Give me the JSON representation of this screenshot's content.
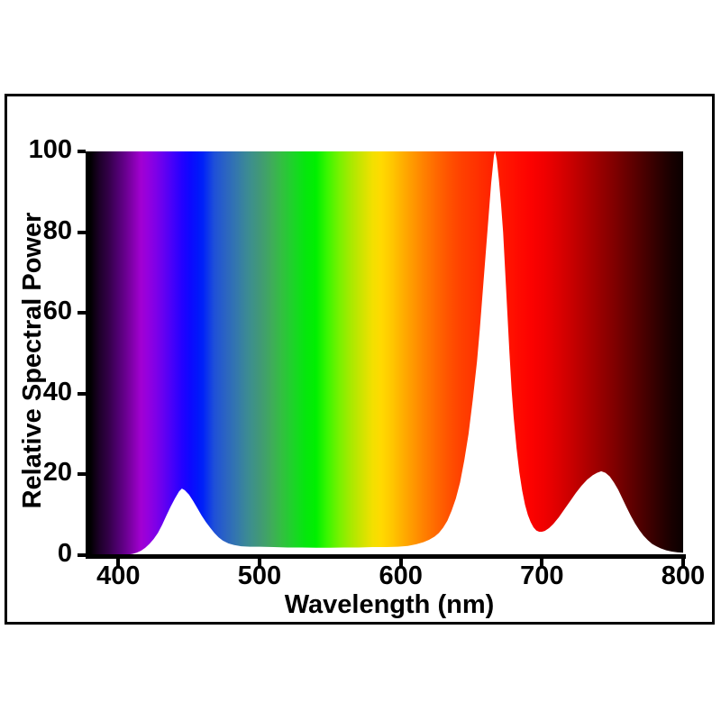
{
  "figure": {
    "background_color": "#ffffff",
    "frame_color": "#000000",
    "axis_color": "#000000",
    "text_color": "#000000",
    "curve_fill_color": "#ffffff"
  },
  "chart_data": {
    "type": "area",
    "title": "",
    "xlabel": "Wavelength (nm)",
    "ylabel": "Relative Spectral Power",
    "xlim": [
      380,
      800
    ],
    "ylim": [
      0,
      100
    ],
    "x_ticks": [
      400,
      500,
      600,
      700,
      800
    ],
    "y_ticks": [
      0,
      20,
      40,
      60,
      80,
      100
    ],
    "grid": false,
    "legend_position": "none",
    "style_note": "Area above the curve is filled with a visible-light spectrum gradient (380-800 nm); area under the curve is white.",
    "peaks": [
      {
        "wavelength_nm": 445,
        "relative_power": 16.5
      },
      {
        "wavelength_nm": 666,
        "relative_power": 100
      },
      {
        "wavelength_nm": 742,
        "relative_power": 21
      }
    ],
    "series": [
      {
        "name": "relative-spectral-power",
        "points": [
          [
            380,
            0
          ],
          [
            400,
            0
          ],
          [
            406,
            0.1
          ],
          [
            410,
            0.3
          ],
          [
            413,
            0.6
          ],
          [
            416,
            1.1
          ],
          [
            419,
            1.8
          ],
          [
            422,
            2.8
          ],
          [
            425,
            4
          ],
          [
            428,
            5.5
          ],
          [
            431,
            7.5
          ],
          [
            434,
            9.8
          ],
          [
            437,
            12
          ],
          [
            440,
            14
          ],
          [
            443,
            15.8
          ],
          [
            445,
            16.5
          ],
          [
            447,
            16.1
          ],
          [
            450,
            15
          ],
          [
            453,
            13.4
          ],
          [
            456,
            11.6
          ],
          [
            459,
            9.8
          ],
          [
            462,
            8.2
          ],
          [
            465,
            6.8
          ],
          [
            468,
            5.5
          ],
          [
            471,
            4.4
          ],
          [
            474,
            3.6
          ],
          [
            478,
            2.9
          ],
          [
            482,
            2.5
          ],
          [
            487,
            2.2
          ],
          [
            493,
            2.1
          ],
          [
            500,
            2.1
          ],
          [
            510,
            2
          ],
          [
            520,
            1.9
          ],
          [
            530,
            1.9
          ],
          [
            540,
            1.85
          ],
          [
            550,
            1.85
          ],
          [
            560,
            1.9
          ],
          [
            570,
            1.9
          ],
          [
            580,
            2
          ],
          [
            590,
            2
          ],
          [
            598,
            2.1
          ],
          [
            605,
            2.3
          ],
          [
            611,
            2.7
          ],
          [
            616,
            3.2
          ],
          [
            620,
            3.8
          ],
          [
            624,
            4.6
          ],
          [
            627,
            5.5
          ],
          [
            630,
            6.8
          ],
          [
            633,
            8.5
          ],
          [
            636,
            11
          ],
          [
            639,
            14
          ],
          [
            642,
            18
          ],
          [
            645,
            23.5
          ],
          [
            648,
            30
          ],
          [
            651,
            38.5
          ],
          [
            654,
            48
          ],
          [
            656,
            56
          ],
          [
            658,
            65
          ],
          [
            660,
            74
          ],
          [
            662,
            83
          ],
          [
            664,
            92
          ],
          [
            666,
            99
          ],
          [
            666.8,
            100
          ],
          [
            668,
            98
          ],
          [
            669.5,
            93
          ],
          [
            671,
            87
          ],
          [
            672.5,
            80
          ],
          [
            674,
            70
          ],
          [
            675.5,
            60
          ],
          [
            677,
            50
          ],
          [
            678.5,
            41
          ],
          [
            680,
            34
          ],
          [
            682,
            26.5
          ],
          [
            684,
            20.5
          ],
          [
            686,
            16
          ],
          [
            688,
            12.5
          ],
          [
            690,
            10
          ],
          [
            692,
            8.2
          ],
          [
            694,
            6.9
          ],
          [
            696,
            6.1
          ],
          [
            698,
            5.8
          ],
          [
            700,
            5.8
          ],
          [
            702,
            6
          ],
          [
            705,
            6.7
          ],
          [
            708,
            7.7
          ],
          [
            712,
            9.4
          ],
          [
            716,
            11.4
          ],
          [
            720,
            13.4
          ],
          [
            724,
            15.4
          ],
          [
            728,
            17.2
          ],
          [
            732,
            18.7
          ],
          [
            736,
            19.8
          ],
          [
            739,
            20.4
          ],
          [
            742,
            20.8
          ],
          [
            745,
            20.4
          ],
          [
            748,
            19.5
          ],
          [
            751,
            18
          ],
          [
            754,
            16.2
          ],
          [
            757,
            14
          ],
          [
            760,
            11.8
          ],
          [
            763,
            9.7
          ],
          [
            766,
            7.8
          ],
          [
            769,
            6.2
          ],
          [
            772,
            4.8
          ],
          [
            775,
            3.7
          ],
          [
            778,
            2.8
          ],
          [
            781,
            2.2
          ],
          [
            784,
            1.7
          ],
          [
            788,
            1.2
          ],
          [
            792,
            0.9
          ],
          [
            796,
            0.7
          ],
          [
            800,
            0.6
          ]
        ]
      }
    ],
    "spectrum_gradient_stops": [
      [
        380,
        "#000000"
      ],
      [
        386,
        "#1b0026"
      ],
      [
        393,
        "#330048"
      ],
      [
        399,
        "#4c006c"
      ],
      [
        405,
        "#68008e"
      ],
      [
        411,
        "#8800b2"
      ],
      [
        416,
        "#a200d2"
      ],
      [
        421,
        "#9400de"
      ],
      [
        427,
        "#7d00e8"
      ],
      [
        433,
        "#6000f2"
      ],
      [
        439,
        "#4200fa"
      ],
      [
        445,
        "#2400ff"
      ],
      [
        451,
        "#0c08ff"
      ],
      [
        457,
        "#0018fa"
      ],
      [
        460,
        "#0022f8"
      ],
      [
        468,
        "#1e50d8"
      ],
      [
        476,
        "#2b64c2"
      ],
      [
        484,
        "#3478ac"
      ],
      [
        492,
        "#3c8c92"
      ],
      [
        500,
        "#419878"
      ],
      [
        508,
        "#40aa5c"
      ],
      [
        516,
        "#32c040"
      ],
      [
        524,
        "#1cd428"
      ],
      [
        532,
        "#06e60e"
      ],
      [
        540,
        "#00f000"
      ],
      [
        548,
        "#3af600"
      ],
      [
        556,
        "#74f200"
      ],
      [
        564,
        "#a4ea00"
      ],
      [
        572,
        "#cce400"
      ],
      [
        580,
        "#f2e000"
      ],
      [
        586,
        "#ffda00"
      ],
      [
        594,
        "#ffc600"
      ],
      [
        602,
        "#ffac00"
      ],
      [
        610,
        "#ff9400"
      ],
      [
        618,
        "#ff7c00"
      ],
      [
        626,
        "#ff6600"
      ],
      [
        634,
        "#ff5200"
      ],
      [
        642,
        "#ff4200"
      ],
      [
        652,
        "#ff3400"
      ],
      [
        662,
        "#ff2600"
      ],
      [
        672,
        "#ff1800"
      ],
      [
        682,
        "#ff0c00"
      ],
      [
        692,
        "#fc0200"
      ],
      [
        702,
        "#f00000"
      ],
      [
        712,
        "#dc0000"
      ],
      [
        722,
        "#c60000"
      ],
      [
        732,
        "#ae0000"
      ],
      [
        742,
        "#960000"
      ],
      [
        752,
        "#7e0000"
      ],
      [
        762,
        "#640000"
      ],
      [
        772,
        "#4a0000"
      ],
      [
        782,
        "#300000"
      ],
      [
        791,
        "#1a0000"
      ],
      [
        800,
        "#0a0000"
      ]
    ]
  }
}
